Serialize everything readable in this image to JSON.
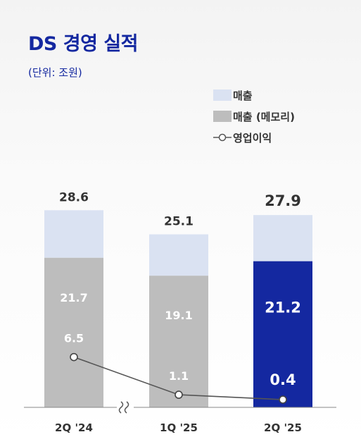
{
  "header": {
    "title": "DS 경영 실적",
    "unit": "(단위: 조원)"
  },
  "legend": {
    "revenue": "매출",
    "memory": "매출 (메모리)",
    "op_profit": "영업이익"
  },
  "colors": {
    "revenue": "#dae2f2",
    "memory": "#bdbdbd",
    "memory_highlight": "#1428a0",
    "line": "#555555",
    "title": "#1428a0"
  },
  "chart_data": {
    "type": "bar",
    "title": "DS 경영 실적",
    "unit": "(단위: 조원)",
    "categories": [
      "2Q '24",
      "1Q '25",
      "2Q '25"
    ],
    "series": [
      {
        "name": "매출",
        "values": [
          28.6,
          25.1,
          27.9
        ]
      },
      {
        "name": "매출 (메모리)",
        "values": [
          21.7,
          19.1,
          21.2
        ]
      },
      {
        "name": "영업이익",
        "type": "line",
        "values": [
          6.5,
          1.1,
          0.4
        ]
      }
    ],
    "highlight_category": "2Q '25",
    "axis_break_between": [
      "2Q '24",
      "1Q '25"
    ],
    "grid": false,
    "legend_position": "top-right"
  }
}
